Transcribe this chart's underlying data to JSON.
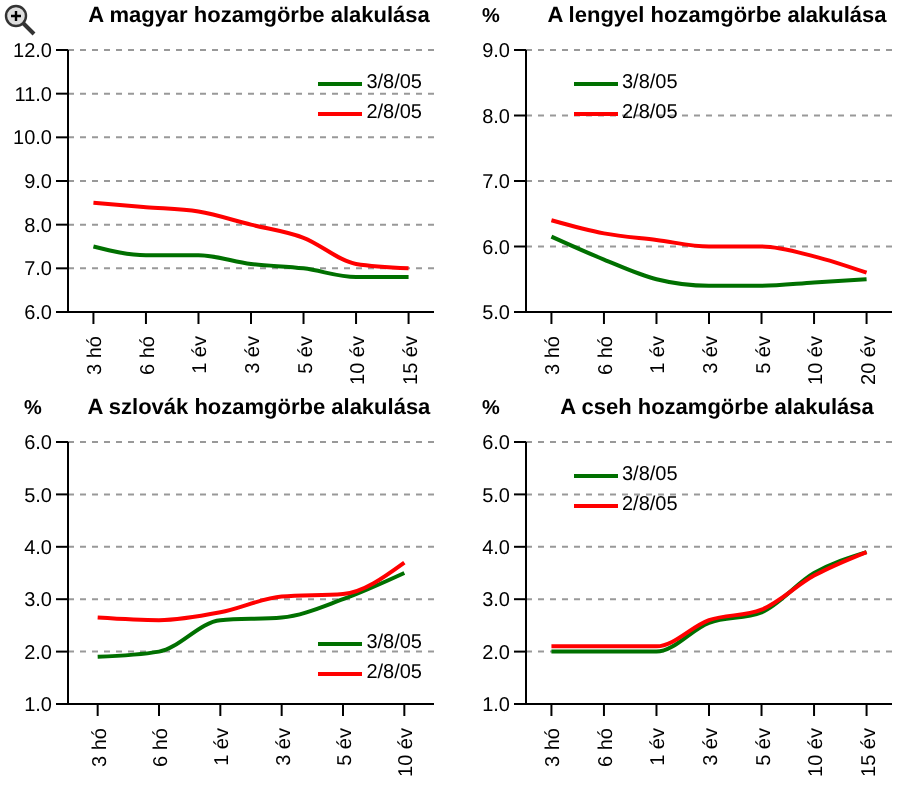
{
  "chart_data": [
    {
      "type": "line",
      "title": "A magyar hozamgörbe alakulása",
      "categories": [
        "3 hó",
        "6 hó",
        "1 év",
        "3 év",
        "5 év",
        "10 év",
        "15 év"
      ],
      "series": [
        {
          "name": "3/8/05",
          "color": "#007000",
          "values": [
            7.5,
            7.3,
            7.3,
            7.1,
            7.0,
            6.8,
            6.8
          ]
        },
        {
          "name": "2/8/05",
          "color": "#ff0000",
          "values": [
            8.5,
            8.4,
            8.3,
            8.0,
            7.7,
            7.1,
            7.0
          ]
        }
      ],
      "ylim": [
        6,
        12
      ],
      "yticks": [
        {
          "value": 6,
          "label": "6.0"
        },
        {
          "value": 7,
          "label": "7.0"
        },
        {
          "value": 8,
          "label": "8.0"
        },
        {
          "value": 9,
          "label": "9.0"
        },
        {
          "value": 10,
          "label": "10.0"
        },
        {
          "value": 11,
          "label": "11.0"
        },
        {
          "value": 12,
          "label": "12.0"
        }
      ],
      "grid": "y",
      "legend": "top right"
    },
    {
      "type": "line",
      "title": "A lengyel hozamgörbe alakulása",
      "ylabel": "%",
      "categories": [
        "3 hó",
        "6 hó",
        "1 év",
        "3 év",
        "5 év",
        "10 év",
        "20 év"
      ],
      "series": [
        {
          "name": "3/8/05",
          "color": "#007000",
          "values": [
            6.15,
            5.8,
            5.5,
            5.4,
            5.4,
            5.45,
            5.5
          ]
        },
        {
          "name": "2/8/05",
          "color": "#ff0000",
          "values": [
            6.4,
            6.2,
            6.1,
            6.0,
            6.0,
            5.85,
            5.6
          ]
        }
      ],
      "ylim": [
        5,
        9
      ],
      "yticks": [
        {
          "value": 5,
          "label": "5.0"
        },
        {
          "value": 6,
          "label": "6.0"
        },
        {
          "value": 7,
          "label": "7.0"
        },
        {
          "value": 8,
          "label": "8.0"
        },
        {
          "value": 9,
          "label": "9.0"
        }
      ],
      "grid": "y",
      "legend": "top left"
    },
    {
      "type": "line",
      "title": "A szlovák hozamgörbe alakulása",
      "ylabel": "%",
      "categories": [
        "3 hó",
        "6 hó",
        "1 év",
        "3 év",
        "5 év",
        "10 év"
      ],
      "series": [
        {
          "name": "3/8/05",
          "color": "#007000",
          "values": [
            1.9,
            2.0,
            2.6,
            2.65,
            3.0,
            3.5
          ]
        },
        {
          "name": "2/8/05",
          "color": "#ff0000",
          "values": [
            2.65,
            2.6,
            2.75,
            3.05,
            3.1,
            3.7
          ]
        }
      ],
      "ylim": [
        1,
        6
      ],
      "yticks": [
        {
          "value": 1,
          "label": "1.0"
        },
        {
          "value": 2,
          "label": "2.0"
        },
        {
          "value": 3,
          "label": "3.0"
        },
        {
          "value": 4,
          "label": "4.0"
        },
        {
          "value": 5,
          "label": "5.0"
        },
        {
          "value": 6,
          "label": "6.0"
        }
      ],
      "grid": "y",
      "legend": "bottom right"
    },
    {
      "type": "line",
      "title": "A cseh hozamgörbe alakulása",
      "ylabel": "%",
      "categories": [
        "3 hó",
        "6 hó",
        "1 év",
        "3 év",
        "5 év",
        "10 év",
        "15 év"
      ],
      "series": [
        {
          "name": "3/8/05",
          "color": "#007000",
          "values": [
            2.0,
            2.0,
            2.0,
            2.55,
            2.75,
            3.5,
            3.9
          ]
        },
        {
          "name": "2/8/05",
          "color": "#ff0000",
          "values": [
            2.1,
            2.1,
            2.1,
            2.6,
            2.8,
            3.45,
            3.9
          ]
        }
      ],
      "ylim": [
        1,
        6
      ],
      "yticks": [
        {
          "value": 1,
          "label": "1.0"
        },
        {
          "value": 2,
          "label": "2.0"
        },
        {
          "value": 3,
          "label": "3.0"
        },
        {
          "value": 4,
          "label": "4.0"
        },
        {
          "value": 5,
          "label": "5.0"
        },
        {
          "value": 6,
          "label": "6.0"
        }
      ],
      "grid": "y",
      "legend": "top left"
    }
  ]
}
